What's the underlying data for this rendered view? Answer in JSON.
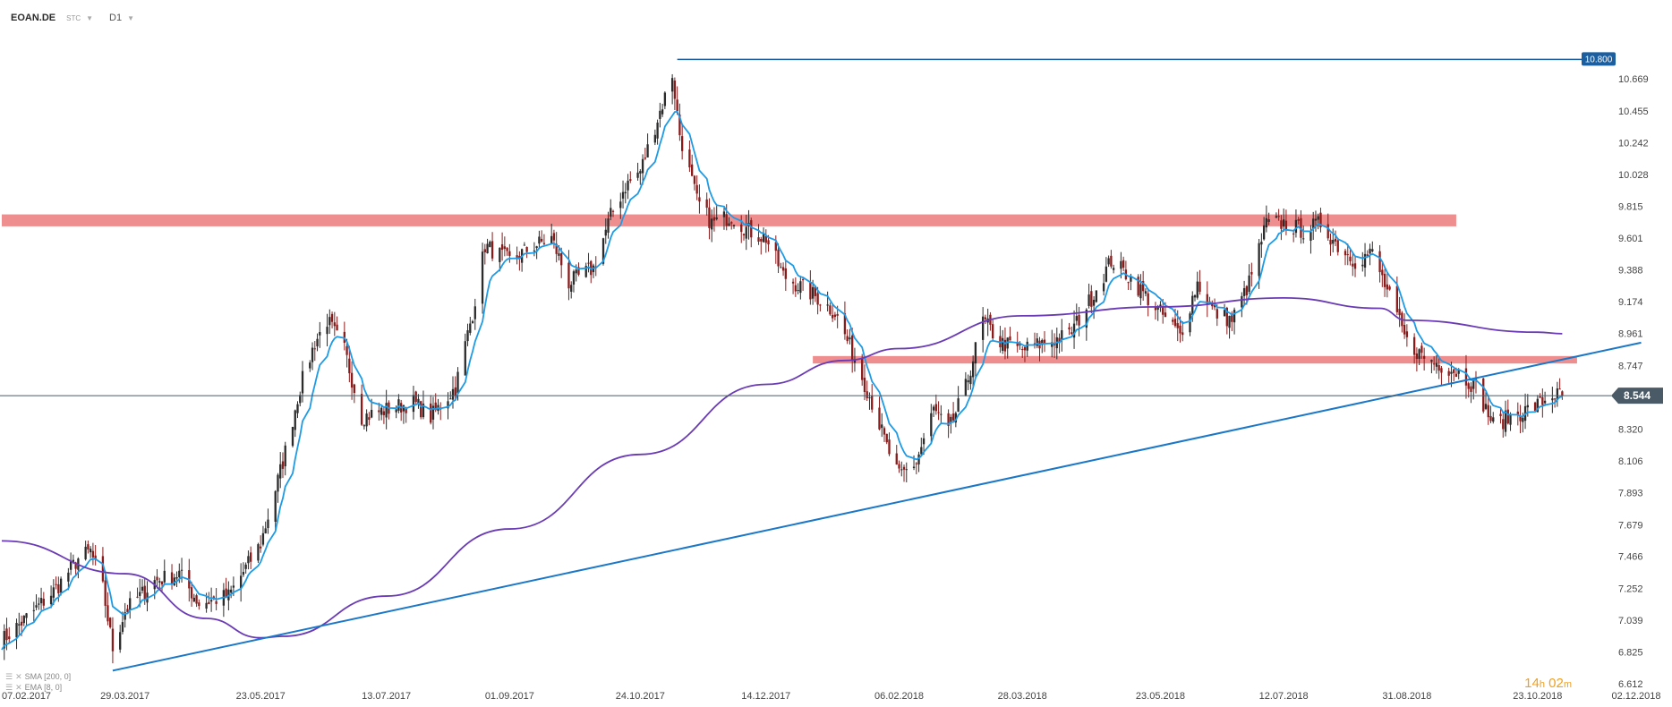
{
  "header": {
    "symbol": "EOAN.DE",
    "instrument_type": "STC",
    "timeframe": "D1"
  },
  "legend": {
    "sma": "SMA [200, 0]",
    "ema": "EMA [8, 0]"
  },
  "countdown": {
    "hours": "14",
    "hours_unit": "h",
    "minutes": "02",
    "minutes_unit": "m"
  },
  "colors": {
    "bull": "#2b2b2b",
    "bear": "#8b1a1a",
    "ema": "#1e9be6",
    "sma": "#6a3bb5",
    "trendline": "#1b78c8",
    "resistance_zone": "#ef8e8e",
    "price_line": "#4a5a66",
    "high_line": "#1b5fa0"
  },
  "chart_data": {
    "type": "candlestick",
    "title": "",
    "ylim": [
      6.612,
      10.85
    ],
    "y_ticks": [
      "10.669",
      "10.455",
      "10.242",
      "10.028",
      "9.815",
      "9.601",
      "9.388",
      "9.174",
      "8.961",
      "8.747",
      "8.320",
      "8.106",
      "7.893",
      "7.679",
      "7.466",
      "7.252",
      "7.039",
      "6.825",
      "6.612"
    ],
    "x_ticks": [
      "07.02.2017",
      "29.03.2017",
      "23.05.2017",
      "13.07.2017",
      "01.09.2017",
      "24.10.2017",
      "14.12.2017",
      "06.02.2018",
      "28.03.2018",
      "23.05.2018",
      "12.07.2018",
      "31.08.2018",
      "23.10.2018",
      "02.12.2018"
    ],
    "x_range": [
      "07.02.2017",
      "02.12.2018"
    ],
    "current_price": "8.544",
    "high_marker": "10.800",
    "close_path": [
      [
        "07.02.2017",
        6.9
      ],
      [
        "20.02.2017",
        7.1
      ],
      [
        "01.03.2017",
        7.25
      ],
      [
        "10.03.2017",
        7.45
      ],
      [
        "15.03.2017",
        7.5
      ],
      [
        "20.03.2017",
        7.25
      ],
      [
        "24.03.2017",
        6.85
      ],
      [
        "29.03.2017",
        7.1
      ],
      [
        "10.04.2017",
        7.3
      ],
      [
        "20.04.2017",
        7.35
      ],
      [
        "28.04.2017",
        7.15
      ],
      [
        "10.05.2017",
        7.2
      ],
      [
        "23.05.2017",
        7.55
      ],
      [
        "01.06.2017",
        8.1
      ],
      [
        "08.06.2017",
        8.6
      ],
      [
        "14.06.2017",
        8.9
      ],
      [
        "19.06.2017",
        9.05
      ],
      [
        "26.06.2017",
        8.85
      ],
      [
        "03.07.2017",
        8.4
      ],
      [
        "13.07.2017",
        8.45
      ],
      [
        "24.07.2017",
        8.5
      ],
      [
        "31.07.2017",
        8.4
      ],
      [
        "10.08.2017",
        8.6
      ],
      [
        "17.08.2017",
        9.1
      ],
      [
        "22.08.2017",
        9.55
      ],
      [
        "01.09.2017",
        9.45
      ],
      [
        "11.09.2017",
        9.55
      ],
      [
        "18.09.2017",
        9.6
      ],
      [
        "25.09.2017",
        9.3
      ],
      [
        "05.10.2017",
        9.4
      ],
      [
        "12.10.2017",
        9.75
      ],
      [
        "18.10.2017",
        9.95
      ],
      [
        "24.10.2017",
        10.05
      ],
      [
        "31.10.2017",
        10.4
      ],
      [
        "06.11.2017",
        10.7
      ],
      [
        "09.11.2017",
        10.3
      ],
      [
        "16.11.2017",
        9.85
      ],
      [
        "22.11.2017",
        9.7
      ],
      [
        "30.11.2017",
        9.75
      ],
      [
        "07.12.2017",
        9.65
      ],
      [
        "14.12.2017",
        9.6
      ],
      [
        "21.12.2017",
        9.35
      ],
      [
        "04.01.2018",
        9.2
      ],
      [
        "11.01.2018",
        9.1
      ],
      [
        "19.01.2018",
        8.8
      ],
      [
        "26.01.2018",
        8.5
      ],
      [
        "01.02.2018",
        8.2
      ],
      [
        "06.02.2018",
        8.0
      ],
      [
        "13.02.2018",
        8.1
      ],
      [
        "20.02.2018",
        8.45
      ],
      [
        "26.02.2018",
        8.3
      ],
      [
        "05.03.2018",
        8.6
      ],
      [
        "12.03.2018",
        9.05
      ],
      [
        "19.03.2018",
        8.9
      ],
      [
        "28.03.2018",
        8.85
      ],
      [
        "06.04.2018",
        8.9
      ],
      [
        "16.04.2018",
        8.95
      ],
      [
        "25.04.2018",
        9.2
      ],
      [
        "03.05.2018",
        9.45
      ],
      [
        "10.05.2018",
        9.35
      ],
      [
        "23.05.2018",
        9.1
      ],
      [
        "31.05.2018",
        8.95
      ],
      [
        "07.06.2018",
        9.3
      ],
      [
        "14.06.2018",
        9.1
      ],
      [
        "21.06.2018",
        9.05
      ],
      [
        "28.06.2018",
        9.3
      ],
      [
        "05.07.2018",
        9.7
      ],
      [
        "12.07.2018",
        9.7
      ],
      [
        "20.07.2018",
        9.65
      ],
      [
        "27.07.2018",
        9.7
      ],
      [
        "03.08.2018",
        9.55
      ],
      [
        "10.08.2018",
        9.45
      ],
      [
        "17.08.2018",
        9.5
      ],
      [
        "24.08.2018",
        9.2
      ],
      [
        "31.08.2018",
        8.9
      ],
      [
        "07.09.2018",
        8.8
      ],
      [
        "14.09.2018",
        8.75
      ],
      [
        "21.09.2018",
        8.7
      ],
      [
        "28.09.2018",
        8.6
      ],
      [
        "05.10.2018",
        8.35
      ],
      [
        "12.10.2018",
        8.4
      ],
      [
        "19.10.2018",
        8.45
      ],
      [
        "23.10.2018",
        8.48
      ],
      [
        "29.10.2018",
        8.55
      ],
      [
        "02.11.2018",
        8.544
      ]
    ],
    "series": [
      {
        "name": "SMA [200, 0]",
        "type": "line",
        "values": [
          [
            "07.02.2017",
            7.57
          ],
          [
            "29.03.2017",
            7.35
          ],
          [
            "01.05.2017",
            7.05
          ],
          [
            "23.05.2017",
            6.92
          ],
          [
            "01.06.2017",
            6.93
          ],
          [
            "13.07.2017",
            7.2
          ],
          [
            "01.09.2017",
            7.65
          ],
          [
            "24.10.2017",
            8.15
          ],
          [
            "14.12.2017",
            8.62
          ],
          [
            "15.01.2018",
            8.78
          ],
          [
            "06.02.2018",
            8.86
          ],
          [
            "28.03.2018",
            9.08
          ],
          [
            "23.05.2018",
            9.14
          ],
          [
            "12.07.2018",
            9.2
          ],
          [
            "20.08.2018",
            9.13
          ],
          [
            "31.08.2018",
            9.05
          ],
          [
            "23.10.2018",
            8.97
          ],
          [
            "02.11.2018",
            8.96
          ]
        ]
      },
      {
        "name": "EMA [8, 0]",
        "type": "line"
      }
    ],
    "annotations": [
      {
        "type": "trendline",
        "points": [
          [
            "24.03.2017",
            6.7
          ],
          [
            "04.12.2018",
            8.9
          ]
        ]
      },
      {
        "type": "zone",
        "x": [
          "07.02.2017",
          "20.09.2018"
        ],
        "y": [
          9.68,
          9.76
        ]
      },
      {
        "type": "zone",
        "x": [
          "02.01.2018",
          "08.11.2018"
        ],
        "y": [
          8.76,
          8.81
        ]
      },
      {
        "type": "hline",
        "from": "08.11.2017",
        "value": 10.8
      },
      {
        "type": "hline",
        "value": 8.544
      }
    ]
  }
}
